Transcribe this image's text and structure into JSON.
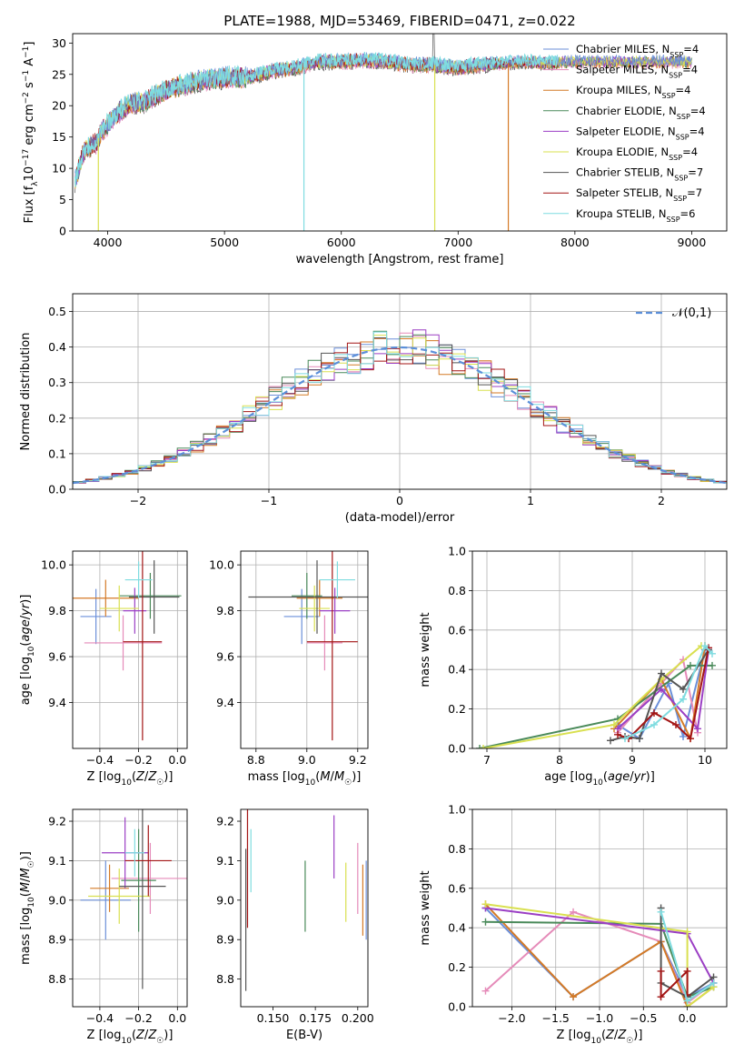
{
  "title": "PLATE=1988, MJD=53469, FIBERID=0471, z=0.022",
  "colors": {
    "chabrier_miles": "#6b8fd9",
    "salpeter_miles": "#e58bb9",
    "kroupa_miles": "#d47a26",
    "chabrier_elodie": "#4a8a5a",
    "salpeter_elodie": "#9b3fc4",
    "kroupa_elodie": "#d9e050",
    "chabrier_stelib": "#555555",
    "salpeter_stelib": "#a31515",
    "kroupa_stelib": "#7fdce0",
    "normal_curve": "#5b8fd9",
    "grid": "#b0b0b0"
  },
  "chart_data": [
    {
      "id": "spectrum",
      "type": "line",
      "xlabel": "wavelength [Angstrom, rest frame]",
      "ylabel": "Flux [f_λ10^-17 erg cm^-2 s^-1 A^-1]",
      "xlim": [
        3700,
        9300
      ],
      "ylim": [
        0,
        31.5
      ],
      "xticks": [
        4000,
        5000,
        6000,
        7000,
        8000,
        9000
      ],
      "yticks": [
        0,
        5,
        10,
        15,
        20,
        25,
        30
      ],
      "grid": false,
      "legend_position": "right",
      "legend": [
        {
          "name": "Chabrier MILES, N_SSP=4",
          "color_key": "chabrier_miles"
        },
        {
          "name": "Salpeter MILES, N_SSP=4",
          "color_key": "salpeter_miles"
        },
        {
          "name": "Kroupa MILES, N_SSP=4",
          "color_key": "kroupa_miles"
        },
        {
          "name": "Chabrier ELODIE, N_SSP=4",
          "color_key": "chabrier_elodie"
        },
        {
          "name": "Salpeter ELODIE, N_SSP=4",
          "color_key": "salpeter_elodie"
        },
        {
          "name": "Kroupa ELODIE, N_SSP=4",
          "color_key": "kroupa_elodie"
        },
        {
          "name": "Chabrier STELIB, N_SSP=7",
          "color_key": "chabrier_stelib"
        },
        {
          "name": "Salpeter STELIB, N_SSP=7",
          "color_key": "salpeter_stelib"
        },
        {
          "name": "Kroupa STELIB, N_SSP=6",
          "color_key": "kroupa_stelib"
        }
      ],
      "continuum": [
        [
          3720,
          8
        ],
        [
          3800,
          13
        ],
        [
          3850,
          13.5
        ],
        [
          3900,
          14
        ],
        [
          3950,
          16
        ],
        [
          4000,
          17
        ],
        [
          4100,
          19
        ],
        [
          4200,
          20.5
        ],
        [
          4300,
          20.5
        ],
        [
          4400,
          21.5
        ],
        [
          4500,
          22.5
        ],
        [
          4600,
          23
        ],
        [
          4800,
          24
        ],
        [
          5000,
          24.5
        ],
        [
          5200,
          24.5
        ],
        [
          5400,
          25.5
        ],
        [
          5600,
          26
        ],
        [
          5800,
          27
        ],
        [
          6000,
          27
        ],
        [
          6200,
          27.2
        ],
        [
          6400,
          27
        ],
        [
          6600,
          26.5
        ],
        [
          6800,
          26.5
        ],
        [
          7000,
          26
        ],
        [
          7200,
          26.5
        ],
        [
          7400,
          26.8
        ],
        [
          7600,
          27
        ],
        [
          7800,
          26.8
        ],
        [
          7900,
          27
        ]
      ],
      "dropouts": [
        {
          "x": 3920,
          "to": 0,
          "color_key": "kroupa_elodie"
        },
        {
          "x": 5680,
          "to": 0,
          "color_key": "kroupa_stelib"
        },
        {
          "x": 6800,
          "to": 0,
          "color_key": "kroupa_elodie"
        },
        {
          "x": 7430,
          "to": 0,
          "color_key": "kroupa_miles"
        }
      ]
    },
    {
      "id": "residuals",
      "type": "histogram",
      "xlabel": "(data-model)/error",
      "ylabel": "Normed distribution",
      "xlim": [
        -2.5,
        2.5
      ],
      "ylim": [
        0,
        0.55
      ],
      "xticks": [
        -2,
        -1,
        0,
        1,
        2
      ],
      "yticks": [
        0.0,
        0.1,
        0.2,
        0.3,
        0.4,
        0.5
      ],
      "grid": true,
      "legend_position": "top-right",
      "legend": [
        {
          "name": "𝒩(0,1)",
          "color_key": "normal_curve",
          "style": "dashed"
        }
      ],
      "bin_width": 0.1
    },
    {
      "id": "age_vs_Z",
      "type": "errorbar",
      "xlabel": "Z [log10(Z/Z☉)]",
      "ylabel": "age  [log10(age/yr)]",
      "xlim": [
        -0.54,
        0.05
      ],
      "ylim": [
        9.2,
        10.06
      ],
      "xticks": [
        -0.4,
        -0.2,
        0.0
      ],
      "yticks": [
        9.4,
        9.6,
        9.8,
        10.0
      ],
      "grid": true,
      "points": [
        {
          "c": "chabrier_miles",
          "x": -0.42,
          "xe": 0.08,
          "y": 9.775,
          "ye": 0.12
        },
        {
          "c": "salpeter_miles",
          "x": -0.28,
          "xe": 0.2,
          "y": 9.66,
          "ye": 0.12
        },
        {
          "c": "kroupa_miles",
          "x": -0.37,
          "xe": 0.17,
          "y": 9.855,
          "ye": 0.08
        },
        {
          "c": "chabrier_elodie",
          "x": -0.14,
          "xe": 0.16,
          "y": 9.865,
          "ye": 0.1
        },
        {
          "c": "salpeter_elodie",
          "x": -0.22,
          "xe": 0.06,
          "y": 9.8,
          "ye": 0.1
        },
        {
          "c": "kroupa_elodie",
          "x": -0.3,
          "xe": 0.1,
          "y": 9.81,
          "ye": 0.1
        },
        {
          "c": "chabrier_stelib",
          "x": -0.12,
          "xe": 0.13,
          "y": 9.86,
          "ye": 0.16
        },
        {
          "c": "salpeter_stelib",
          "x": -0.18,
          "xe": 0.1,
          "y": 9.665,
          "ye": 0.43
        },
        {
          "c": "kroupa_stelib",
          "x": -0.2,
          "xe": 0.07,
          "y": 9.935,
          "ye": 0.08
        }
      ]
    },
    {
      "id": "age_vs_mass",
      "type": "errorbar",
      "xlabel": "mass [log10(M/M☉)]",
      "ylabel": "",
      "xlim": [
        8.74,
        9.24
      ],
      "ylim": [
        9.2,
        10.06
      ],
      "xticks": [
        8.8,
        9.0,
        9.2
      ],
      "yticks": [
        9.4,
        9.6,
        9.8,
        10.0
      ],
      "grid": true,
      "points": [
        {
          "c": "chabrier_miles",
          "x": 8.98,
          "xe": 0.07,
          "y": 9.775,
          "ye": 0.12
        },
        {
          "c": "salpeter_miles",
          "x": 9.07,
          "xe": 0.07,
          "y": 9.66,
          "ye": 0.12
        },
        {
          "c": "kroupa_miles",
          "x": 9.05,
          "xe": 0.09,
          "y": 9.855,
          "ye": 0.08
        },
        {
          "c": "chabrier_elodie",
          "x": 9.0,
          "xe": 0.06,
          "y": 9.865,
          "ye": 0.1
        },
        {
          "c": "salpeter_elodie",
          "x": 9.11,
          "xe": 0.06,
          "y": 9.8,
          "ye": 0.1
        },
        {
          "c": "kroupa_elodie",
          "x": 9.03,
          "xe": 0.06,
          "y": 9.81,
          "ye": 0.1
        },
        {
          "c": "chabrier_stelib",
          "x": 9.04,
          "xe": 0.27,
          "y": 9.86,
          "ye": 0.16
        },
        {
          "c": "salpeter_stelib",
          "x": 9.1,
          "xe": 0.1,
          "y": 9.665,
          "ye": 0.43
        },
        {
          "c": "kroupa_stelib",
          "x": 9.12,
          "xe": 0.07,
          "y": 9.935,
          "ye": 0.08
        }
      ]
    },
    {
      "id": "massweight_vs_age",
      "type": "line",
      "xlabel": "age  [log10(age/yr)]",
      "ylabel": "mass weight",
      "xlim": [
        6.8,
        10.3
      ],
      "ylim": [
        0,
        1.0
      ],
      "xticks": [
        7,
        8,
        9,
        10
      ],
      "yticks": [
        0.0,
        0.2,
        0.4,
        0.6,
        0.8,
        1.0
      ],
      "grid": true,
      "series": [
        {
          "c": "chabrier_miles",
          "x": [
            8.8,
            9.1,
            9.5,
            9.7,
            10.0
          ],
          "y": [
            0.12,
            0.05,
            0.33,
            0.06,
            0.5
          ]
        },
        {
          "c": "salpeter_miles",
          "x": [
            8.8,
            9.4,
            9.7,
            9.9
          ],
          "y": [
            0.08,
            0.33,
            0.45,
            0.08
          ]
        },
        {
          "c": "kroupa_miles",
          "x": [
            8.75,
            9.4,
            9.8,
            10.0
          ],
          "y": [
            0.1,
            0.35,
            0.05,
            0.52
          ]
        },
        {
          "c": "chabrier_elodie",
          "x": [
            6.9,
            8.8,
            9.8,
            10.1
          ],
          "y": [
            0.0,
            0.15,
            0.42,
            0.42
          ]
        },
        {
          "c": "salpeter_elodie",
          "x": [
            8.8,
            9.4,
            9.9,
            10.05
          ],
          "y": [
            0.1,
            0.3,
            0.1,
            0.5
          ]
        },
        {
          "c": "kroupa_elodie",
          "x": [
            6.95,
            8.75,
            9.4,
            9.95
          ],
          "y": [
            0.0,
            0.12,
            0.35,
            0.52
          ]
        },
        {
          "c": "chabrier_stelib",
          "x": [
            8.7,
            8.9,
            9.1,
            9.4,
            9.7,
            10.05
          ],
          "y": [
            0.04,
            0.06,
            0.05,
            0.38,
            0.3,
            0.5
          ]
        },
        {
          "c": "salpeter_stelib",
          "x": [
            8.8,
            8.95,
            9.3,
            9.6,
            9.8,
            10.05
          ],
          "y": [
            0.07,
            0.05,
            0.18,
            0.12,
            0.05,
            0.51
          ]
        },
        {
          "c": "kroupa_stelib",
          "x": [
            8.9,
            9.3,
            9.7,
            10.0,
            10.1
          ],
          "y": [
            0.05,
            0.12,
            0.25,
            0.52,
            0.48
          ]
        }
      ]
    },
    {
      "id": "mass_vs_Z",
      "type": "errorbar",
      "xlabel": "Z [log10(Z/Z☉)]",
      "ylabel": "mass [log10(M/M☉)]",
      "xlim": [
        -0.54,
        0.05
      ],
      "ylim": [
        8.73,
        9.23
      ],
      "xticks": [
        -0.4,
        -0.2,
        0.0
      ],
      "yticks": [
        8.8,
        8.9,
        9.0,
        9.1,
        9.2
      ],
      "grid": true,
      "points": [
        {
          "c": "chabrier_miles",
          "x": -0.37,
          "xe": 0.13,
          "y": 9.0,
          "ye": 0.1
        },
        {
          "c": "salpeter_miles",
          "x": -0.14,
          "xe": 0.2,
          "y": 9.055,
          "ye": 0.09
        },
        {
          "c": "kroupa_miles",
          "x": -0.35,
          "xe": 0.1,
          "y": 9.03,
          "ye": 0.06
        },
        {
          "c": "chabrier_elodie",
          "x": -0.2,
          "xe": 0.09,
          "y": 9.05,
          "ye": 0.13
        },
        {
          "c": "salpeter_elodie",
          "x": -0.27,
          "xe": 0.12,
          "y": 9.12,
          "ye": 0.09
        },
        {
          "c": "kroupa_elodie",
          "x": -0.3,
          "xe": 0.16,
          "y": 9.01,
          "ye": 0.07
        },
        {
          "c": "chabrier_stelib",
          "x": -0.18,
          "xe": 0.12,
          "y": 9.035,
          "ye": 0.26
        },
        {
          "c": "salpeter_stelib",
          "x": -0.15,
          "xe": 0.12,
          "y": 9.1,
          "ye": 0.09
        },
        {
          "c": "kroupa_stelib",
          "x": -0.22,
          "xe": 0.05,
          "y": 9.12,
          "ye": 0.06
        }
      ]
    },
    {
      "id": "mass_vs_ebv",
      "type": "errorbar",
      "xlabel": "E(B-V)",
      "ylabel": "",
      "xlim": [
        0.131,
        0.206
      ],
      "ylim": [
        8.73,
        9.23
      ],
      "xticks": [
        0.15,
        0.175,
        0.2
      ],
      "xtick_labels": [
        "0.150",
        "0.175",
        "0.200"
      ],
      "yticks": [
        8.8,
        8.9,
        9.0,
        9.1,
        9.2
      ],
      "grid": false,
      "points": [
        {
          "c": "chabrier_miles",
          "x": 0.205,
          "xe": 0,
          "y": 9.0,
          "ye": 0.1
        },
        {
          "c": "salpeter_miles",
          "x": 0.2,
          "xe": 0,
          "y": 9.055,
          "ye": 0.09
        },
        {
          "c": "kroupa_miles",
          "x": 0.203,
          "xe": 0,
          "y": 9.0,
          "ye": 0.09
        },
        {
          "c": "chabrier_elodie",
          "x": 0.169,
          "xe": 0,
          "y": 9.01,
          "ye": 0.09
        },
        {
          "c": "salpeter_elodie",
          "x": 0.186,
          "xe": 0,
          "y": 9.135,
          "ye": 0.08
        },
        {
          "c": "kroupa_elodie",
          "x": 0.193,
          "xe": 0,
          "y": 9.02,
          "ye": 0.075
        },
        {
          "c": "chabrier_stelib",
          "x": 0.134,
          "xe": 0,
          "y": 8.95,
          "ye": 0.18
        },
        {
          "c": "salpeter_stelib",
          "x": 0.135,
          "xe": 0,
          "y": 9.09,
          "ye": 0.16
        },
        {
          "c": "kroupa_stelib",
          "x": 0.137,
          "xe": 0,
          "y": 9.1,
          "ye": 0.08
        }
      ]
    },
    {
      "id": "massweight_vs_Z",
      "type": "line",
      "xlabel": "Z [log10(Z/Z☉)]",
      "ylabel": "mass weight",
      "xlim": [
        -2.45,
        0.45
      ],
      "ylim": [
        0,
        1.0
      ],
      "xticks": [
        -2.0,
        -1.5,
        -1.0,
        -0.5,
        0.0
      ],
      "yticks": [
        0.0,
        0.2,
        0.4,
        0.6,
        0.8,
        1.0
      ],
      "grid": true,
      "series": [
        {
          "c": "chabrier_miles",
          "x": [
            -2.3,
            -1.3,
            -0.3,
            0.0,
            0.3
          ],
          "y": [
            0.5,
            0.05,
            0.33,
            0.05,
            0.12
          ]
        },
        {
          "c": "salpeter_miles",
          "x": [
            -2.3,
            -1.3,
            -0.3,
            0.0,
            0.3
          ],
          "y": [
            0.08,
            0.48,
            0.33,
            0.02,
            0.12
          ]
        },
        {
          "c": "kroupa_miles",
          "x": [
            -2.3,
            -1.3,
            -0.3,
            0.0,
            0.3
          ],
          "y": [
            0.52,
            0.05,
            0.33,
            0.0,
            0.1
          ]
        },
        {
          "c": "chabrier_elodie",
          "x": [
            -2.3,
            -0.3,
            0.0,
            0.3
          ],
          "y": [
            0.43,
            0.42,
            0.05,
            0.1
          ]
        },
        {
          "c": "salpeter_elodie",
          "x": [
            -2.3,
            0.0,
            0.3
          ],
          "y": [
            0.5,
            0.37,
            0.12
          ]
        },
        {
          "c": "kroupa_elodie",
          "x": [
            -2.3,
            0.0,
            0.0,
            0.3
          ],
          "y": [
            0.52,
            0.38,
            0.0,
            0.1
          ]
        },
        {
          "c": "chabrier_stelib",
          "x": [
            -0.3,
            -0.3,
            0.0,
            0.3
          ],
          "y": [
            0.5,
            0.12,
            0.05,
            0.15
          ]
        },
        {
          "c": "salpeter_stelib",
          "x": [
            -0.3,
            -0.3,
            0.0,
            0.0
          ],
          "y": [
            0.18,
            0.05,
            0.18,
            0.06
          ]
        },
        {
          "c": "kroupa_stelib",
          "x": [
            -0.3,
            0.0,
            0.3
          ],
          "y": [
            0.48,
            0.03,
            0.12
          ]
        }
      ]
    }
  ]
}
